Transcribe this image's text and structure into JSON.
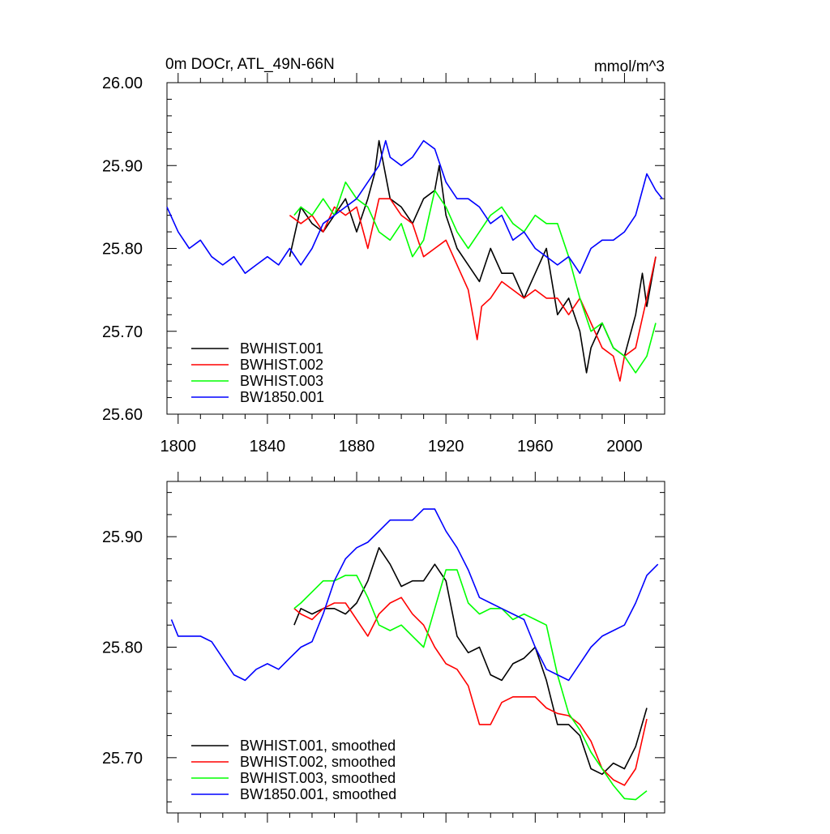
{
  "colors": {
    "BWHIST.001": "#000000",
    "BWHIST.002": "#ff0000",
    "BWHIST.003": "#00ff00",
    "BW1850.001": "#0000ff"
  },
  "chart_data": [
    {
      "type": "line",
      "title": "0m DOCr, ATL_49N-66N",
      "units": "mmol/m^3",
      "xlabel": "",
      "ylabel": "",
      "xlim": [
        1795,
        2018
      ],
      "ylim": [
        25.6,
        26.0
      ],
      "xticks": [
        1800,
        1840,
        1880,
        1920,
        1960,
        2000
      ],
      "xtick_labels": [
        "1800",
        "1840",
        "1880",
        "1920",
        "1960",
        "2000"
      ],
      "yticks": [
        25.6,
        25.7,
        25.8,
        25.9,
        26.0
      ],
      "ytick_labels": [
        "25.60",
        "25.70",
        "25.80",
        "25.90",
        "26.00"
      ],
      "legend_position": "bottom-left",
      "series": [
        {
          "name": "BWHIST.001",
          "color": "#000000",
          "x": [
            1850,
            1855,
            1860,
            1865,
            1870,
            1875,
            1880,
            1885,
            1888,
            1890,
            1895,
            1900,
            1905,
            1910,
            1915,
            1917,
            1920,
            1925,
            1930,
            1935,
            1940,
            1945,
            1950,
            1955,
            1960,
            1965,
            1970,
            1975,
            1980,
            1983,
            1985,
            1990,
            1995,
            2000,
            2005,
            2008,
            2010,
            2014
          ],
          "values": [
            25.79,
            25.85,
            25.83,
            25.82,
            25.84,
            25.86,
            25.82,
            25.86,
            25.89,
            25.93,
            25.86,
            25.85,
            25.83,
            25.86,
            25.87,
            25.9,
            25.84,
            25.8,
            25.78,
            25.76,
            25.8,
            25.77,
            25.77,
            25.74,
            25.77,
            25.8,
            25.72,
            25.74,
            25.7,
            25.65,
            25.68,
            25.71,
            25.68,
            25.67,
            25.72,
            25.77,
            25.73,
            25.79
          ]
        },
        {
          "name": "BWHIST.002",
          "color": "#ff0000",
          "x": [
            1850,
            1855,
            1860,
            1865,
            1870,
            1875,
            1880,
            1885,
            1890,
            1895,
            1900,
            1905,
            1910,
            1915,
            1920,
            1925,
            1930,
            1934,
            1936,
            1940,
            1945,
            1950,
            1955,
            1960,
            1965,
            1970,
            1975,
            1980,
            1985,
            1990,
            1995,
            1998,
            2000,
            2005,
            2010,
            2014
          ],
          "values": [
            25.84,
            25.83,
            25.84,
            25.82,
            25.85,
            25.84,
            25.85,
            25.8,
            25.86,
            25.86,
            25.84,
            25.83,
            25.79,
            25.8,
            25.81,
            25.78,
            25.75,
            25.69,
            25.73,
            25.74,
            25.76,
            25.75,
            25.74,
            25.75,
            25.74,
            25.74,
            25.72,
            25.74,
            25.71,
            25.68,
            25.67,
            25.64,
            25.67,
            25.68,
            25.74,
            25.79
          ]
        },
        {
          "name": "BWHIST.003",
          "color": "#00ff00",
          "x": [
            1852,
            1855,
            1860,
            1865,
            1870,
            1875,
            1880,
            1885,
            1890,
            1895,
            1900,
            1905,
            1910,
            1915,
            1920,
            1925,
            1930,
            1935,
            1940,
            1945,
            1950,
            1955,
            1960,
            1965,
            1970,
            1975,
            1980,
            1985,
            1990,
            1995,
            2000,
            2005,
            2010,
            2014
          ],
          "values": [
            25.84,
            25.85,
            25.84,
            25.86,
            25.84,
            25.88,
            25.86,
            25.85,
            25.82,
            25.81,
            25.83,
            25.79,
            25.81,
            25.87,
            25.85,
            25.82,
            25.8,
            25.82,
            25.84,
            25.85,
            25.83,
            25.82,
            25.84,
            25.83,
            25.83,
            25.79,
            25.74,
            25.7,
            25.71,
            25.68,
            25.67,
            25.65,
            25.67,
            25.71
          ]
        },
        {
          "name": "BW1850.001",
          "color": "#0000ff",
          "x": [
            1795,
            1800,
            1805,
            1810,
            1815,
            1820,
            1825,
            1830,
            1835,
            1840,
            1845,
            1850,
            1855,
            1860,
            1865,
            1870,
            1875,
            1880,
            1885,
            1890,
            1893,
            1895,
            1900,
            1905,
            1910,
            1915,
            1920,
            1925,
            1930,
            1935,
            1940,
            1945,
            1950,
            1955,
            1960,
            1965,
            1970,
            1975,
            1980,
            1985,
            1990,
            1995,
            2000,
            2005,
            2010,
            2014,
            2017
          ],
          "values": [
            25.85,
            25.82,
            25.8,
            25.81,
            25.79,
            25.78,
            25.79,
            25.77,
            25.78,
            25.79,
            25.78,
            25.8,
            25.78,
            25.8,
            25.83,
            25.84,
            25.85,
            25.86,
            25.88,
            25.9,
            25.93,
            25.91,
            25.9,
            25.91,
            25.93,
            25.92,
            25.88,
            25.86,
            25.86,
            25.85,
            25.83,
            25.84,
            25.81,
            25.82,
            25.8,
            25.79,
            25.78,
            25.79,
            25.77,
            25.8,
            25.81,
            25.81,
            25.82,
            25.84,
            25.89,
            25.87,
            25.86
          ]
        }
      ]
    },
    {
      "type": "line",
      "title": "",
      "xlabel": "",
      "ylabel": "",
      "xlim": [
        1795,
        2018
      ],
      "ylim": [
        25.65,
        25.95
      ],
      "xticks": [
        1800,
        1840,
        1880,
        1920,
        1960,
        2000
      ],
      "yticks": [
        25.7,
        25.8,
        25.9
      ],
      "ytick_labels": [
        "25.70",
        "25.80",
        "25.90"
      ],
      "legend_position": "bottom-left",
      "series": [
        {
          "name": "BWHIST.001, smoothed",
          "color": "#000000",
          "x": [
            1852,
            1855,
            1860,
            1865,
            1870,
            1875,
            1880,
            1885,
            1890,
            1895,
            1900,
            1905,
            1910,
            1915,
            1920,
            1925,
            1930,
            1935,
            1940,
            1945,
            1950,
            1955,
            1960,
            1965,
            1970,
            1975,
            1980,
            1985,
            1990,
            1995,
            2000,
            2005,
            2010
          ],
          "values": [
            25.82,
            25.835,
            25.83,
            25.835,
            25.835,
            25.83,
            25.84,
            25.86,
            25.89,
            25.875,
            25.855,
            25.86,
            25.86,
            25.875,
            25.86,
            25.81,
            25.795,
            25.8,
            25.775,
            25.77,
            25.785,
            25.79,
            25.8,
            25.77,
            25.73,
            25.73,
            25.72,
            25.69,
            25.685,
            25.695,
            25.69,
            25.71,
            25.745
          ]
        },
        {
          "name": "BWHIST.002, smoothed",
          "color": "#ff0000",
          "x": [
            1852,
            1855,
            1860,
            1865,
            1870,
            1875,
            1880,
            1885,
            1890,
            1895,
            1900,
            1905,
            1910,
            1915,
            1920,
            1925,
            1930,
            1935,
            1940,
            1945,
            1950,
            1955,
            1960,
            1965,
            1970,
            1975,
            1980,
            1985,
            1990,
            1995,
            2000,
            2005,
            2010
          ],
          "values": [
            25.835,
            25.83,
            25.825,
            25.835,
            25.84,
            25.84,
            25.825,
            25.81,
            25.83,
            25.84,
            25.845,
            25.83,
            25.82,
            25.8,
            25.785,
            25.78,
            25.765,
            25.73,
            25.73,
            25.75,
            25.755,
            25.755,
            25.755,
            25.745,
            25.74,
            25.738,
            25.73,
            25.715,
            25.69,
            25.68,
            25.675,
            25.69,
            25.735
          ]
        },
        {
          "name": "BWHIST.003, smoothed",
          "color": "#00ff00",
          "x": [
            1852,
            1855,
            1860,
            1865,
            1870,
            1875,
            1880,
            1885,
            1890,
            1895,
            1900,
            1905,
            1910,
            1915,
            1920,
            1925,
            1930,
            1935,
            1940,
            1945,
            1950,
            1955,
            1960,
            1965,
            1970,
            1975,
            1980,
            1985,
            1990,
            1995,
            2000,
            2005,
            2010
          ],
          "values": [
            25.835,
            25.84,
            25.85,
            25.86,
            25.86,
            25.865,
            25.865,
            25.845,
            25.82,
            25.815,
            25.82,
            25.81,
            25.8,
            25.835,
            25.87,
            25.87,
            25.84,
            25.83,
            25.835,
            25.835,
            25.825,
            25.83,
            25.825,
            25.82,
            25.775,
            25.74,
            25.725,
            25.705,
            25.69,
            25.675,
            25.663,
            25.662,
            25.67
          ]
        },
        {
          "name": "BW1850.001, smoothed",
          "color": "#0000ff",
          "x": [
            1797,
            1800,
            1805,
            1810,
            1815,
            1820,
            1825,
            1830,
            1835,
            1840,
            1845,
            1850,
            1855,
            1860,
            1865,
            1870,
            1875,
            1880,
            1885,
            1890,
            1895,
            1900,
            1905,
            1910,
            1915,
            1920,
            1925,
            1930,
            1935,
            1940,
            1945,
            1950,
            1955,
            1960,
            1965,
            1970,
            1975,
            1980,
            1985,
            1990,
            1995,
            2000,
            2005,
            2010,
            2015
          ],
          "values": [
            25.825,
            25.81,
            25.81,
            25.81,
            25.805,
            25.79,
            25.775,
            25.77,
            25.78,
            25.785,
            25.78,
            25.79,
            25.8,
            25.805,
            25.83,
            25.86,
            25.88,
            25.89,
            25.895,
            25.905,
            25.915,
            25.915,
            25.915,
            25.925,
            25.925,
            25.905,
            25.89,
            25.87,
            25.845,
            25.84,
            25.835,
            25.83,
            25.825,
            25.8,
            25.78,
            25.775,
            25.77,
            25.785,
            25.8,
            25.81,
            25.815,
            25.82,
            25.84,
            25.865,
            25.875
          ]
        }
      ]
    }
  ]
}
